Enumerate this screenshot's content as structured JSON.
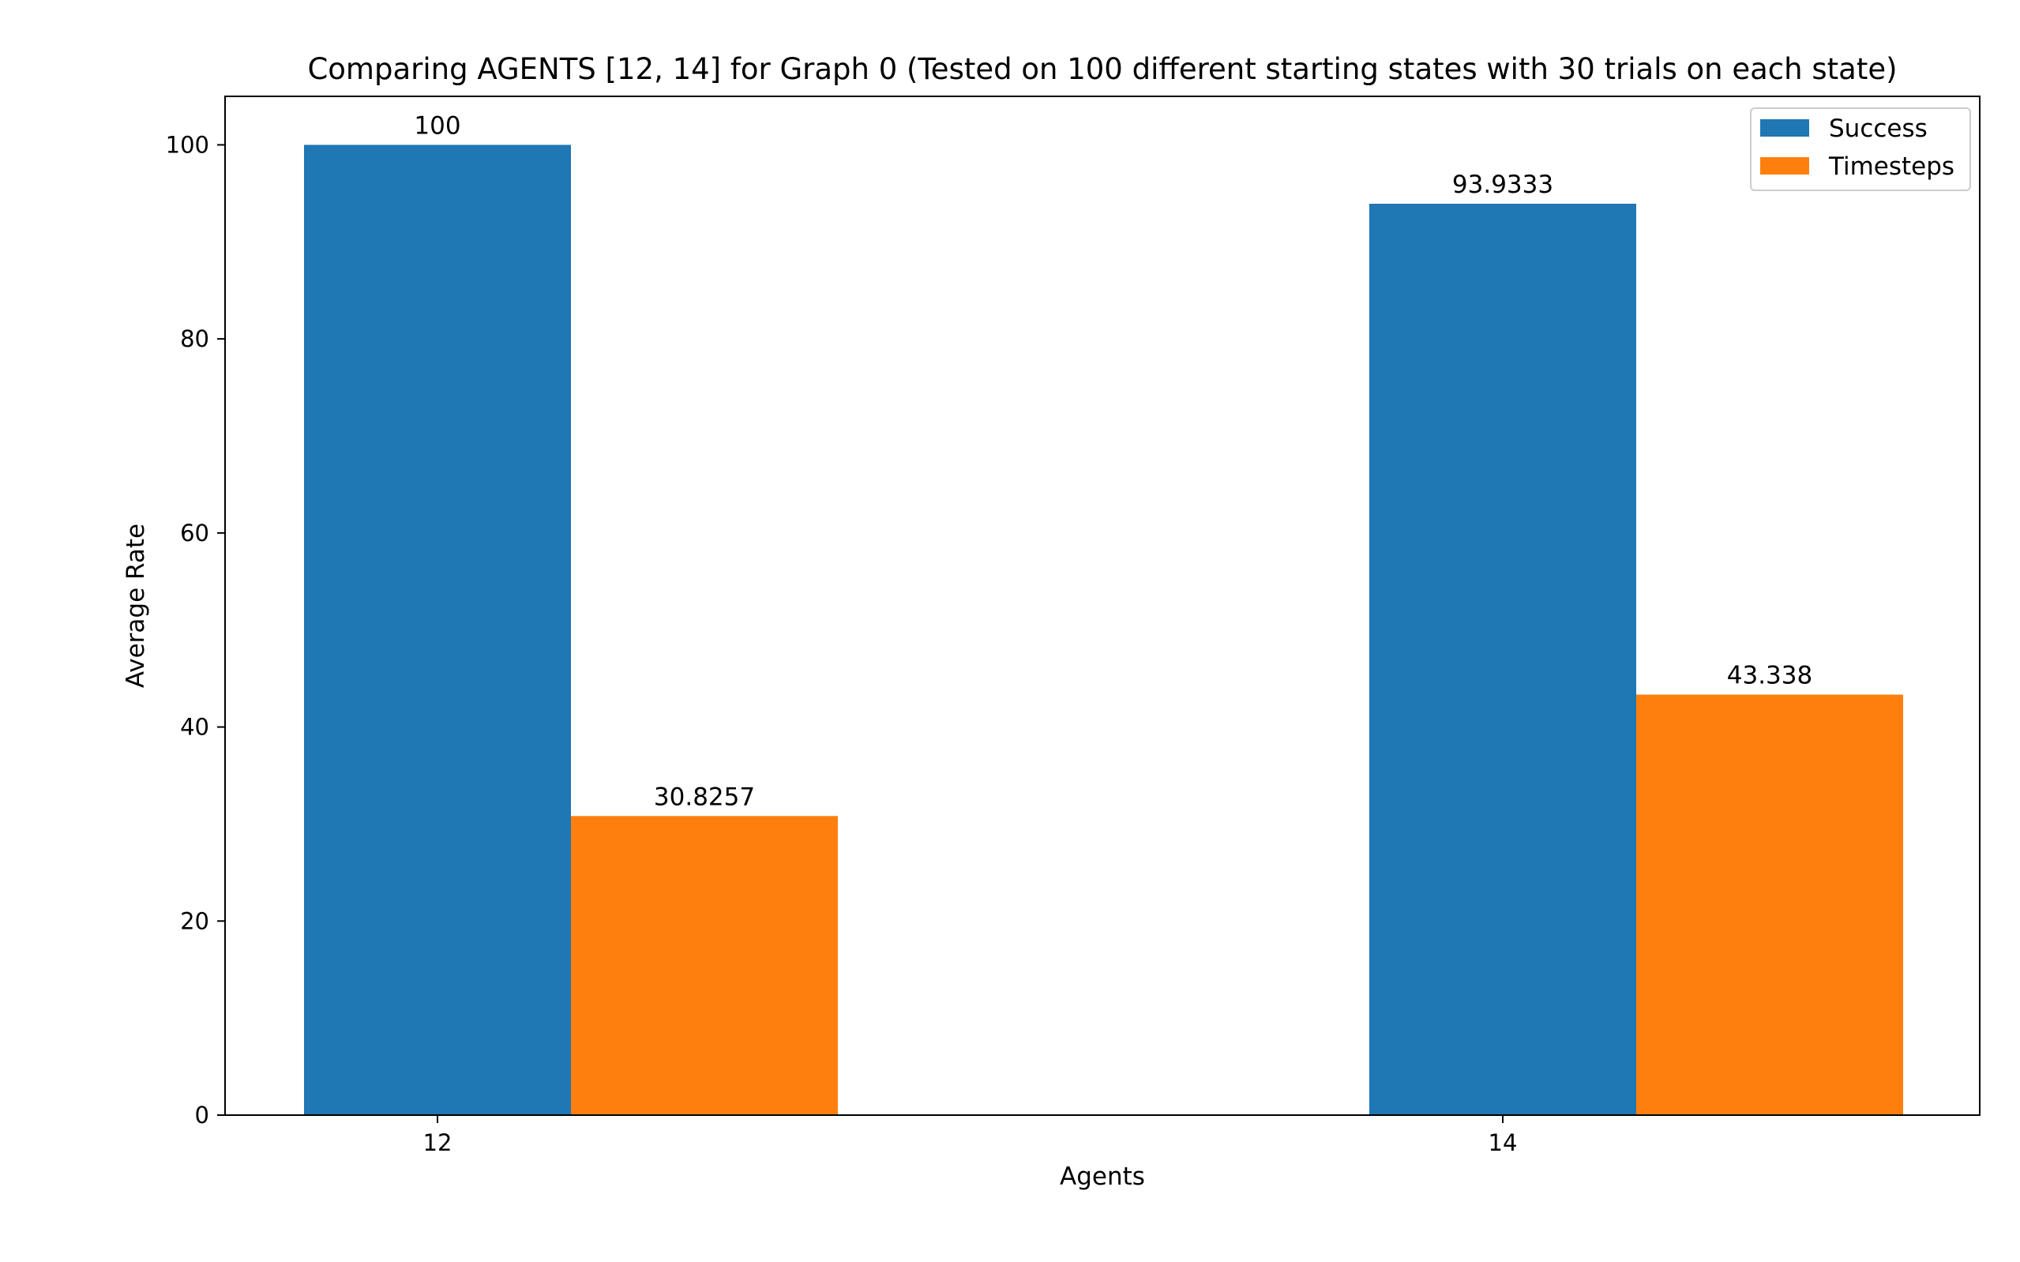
{
  "chart_data": {
    "type": "bar",
    "title": "Comparing AGENTS [12, 14] for Graph 0 (Tested on 100 different starting states with 30 trials on each state)",
    "xlabel": "Agents",
    "ylabel": "Average Rate",
    "categories": [
      "12",
      "14"
    ],
    "series": [
      {
        "name": "Success",
        "color": "#1f77b4",
        "values": [
          100,
          93.9333
        ],
        "labels": [
          "100",
          "93.9333"
        ]
      },
      {
        "name": "Timesteps",
        "color": "#ff7f0e",
        "values": [
          30.8257,
          43.338
        ],
        "labels": [
          "30.8257",
          "43.338"
        ]
      }
    ],
    "ylim": [
      0,
      105
    ],
    "yticks": [
      0,
      20,
      40,
      60,
      80,
      100
    ],
    "ytick_labels": [
      "0",
      "20",
      "40",
      "60",
      "80",
      "100"
    ],
    "grid": false,
    "legend_position": "top-right"
  }
}
